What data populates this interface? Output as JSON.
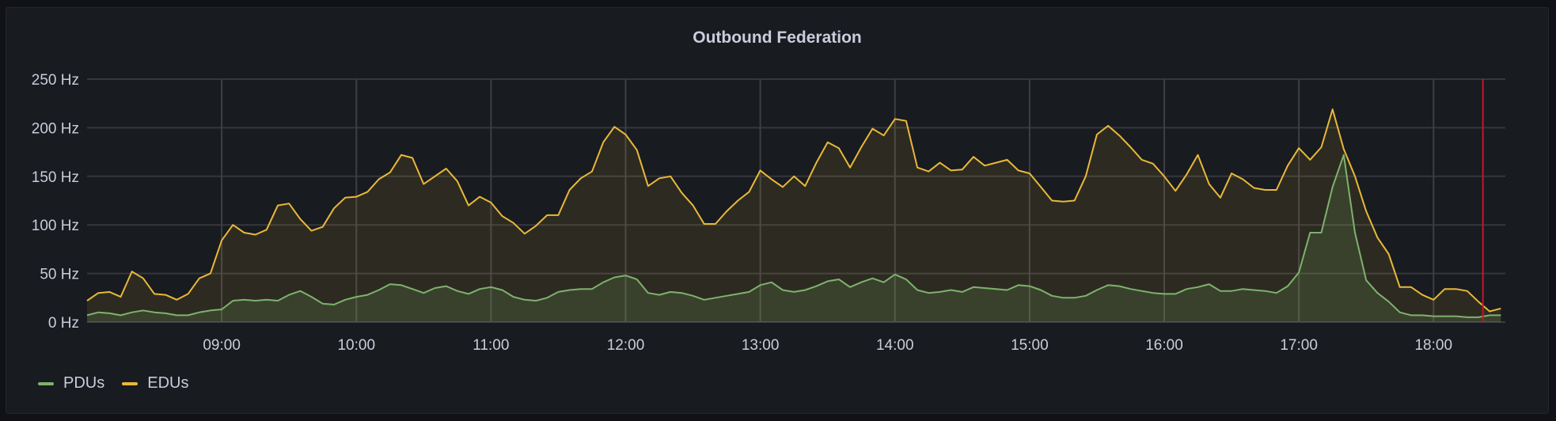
{
  "chart_data": {
    "type": "line",
    "title": "Outbound Federation",
    "xlabel": "",
    "ylabel": "",
    "unit": "Hz",
    "ylim": [
      0,
      250
    ],
    "xlim": [
      "08:00",
      "18:32"
    ],
    "yticks": [
      "0 Hz",
      "50 Hz",
      "100 Hz",
      "150 Hz",
      "200 Hz",
      "250 Hz"
    ],
    "ytick_values": [
      0,
      50,
      100,
      150,
      200,
      250
    ],
    "xticks": [
      "09:00",
      "10:00",
      "11:00",
      "12:00",
      "13:00",
      "14:00",
      "15:00",
      "16:00",
      "17:00",
      "18:00"
    ],
    "grid": true,
    "legend_placement": "bottom-left",
    "fill_area": true,
    "annotation_time": "18:22",
    "annotation_color": "#c4162a",
    "x_start": "08:00",
    "x_step_minutes": 5,
    "series": [
      {
        "name": "PDUs",
        "color": "#7eb26d",
        "values": [
          7,
          10,
          9,
          7,
          10,
          12,
          10,
          9,
          7,
          7,
          10,
          12,
          13,
          22,
          23,
          22,
          23,
          22,
          28,
          32,
          26,
          19,
          18,
          23,
          26,
          28,
          33,
          39,
          38,
          34,
          30,
          35,
          37,
          32,
          29,
          34,
          36,
          33,
          26,
          23,
          22,
          25,
          31,
          33,
          34,
          34,
          41,
          46,
          48,
          44,
          30,
          28,
          31,
          30,
          27,
          23,
          25,
          27,
          29,
          31,
          38,
          41,
          33,
          31,
          33,
          37,
          42,
          44,
          36,
          41,
          45,
          41,
          49,
          44,
          33,
          30,
          31,
          33,
          31,
          36,
          35,
          34,
          33,
          38,
          37,
          33,
          27,
          25,
          25,
          27,
          33,
          38,
          37,
          34,
          32,
          30,
          29,
          29,
          34,
          36,
          39,
          32,
          32,
          34,
          33,
          32,
          30,
          37,
          51,
          92,
          92,
          139,
          172,
          92,
          43,
          30,
          21,
          10,
          7,
          7,
          6,
          6,
          6,
          5,
          5,
          7,
          7
        ]
      },
      {
        "name": "EDUs",
        "color": "#eab839",
        "values": [
          22,
          30,
          31,
          26,
          52,
          45,
          29,
          28,
          23,
          29,
          45,
          50,
          84,
          100,
          92,
          90,
          95,
          120,
          122,
          106,
          94,
          98,
          117,
          128,
          129,
          134,
          147,
          154,
          172,
          169,
          142,
          150,
          158,
          145,
          120,
          129,
          123,
          109,
          102,
          91,
          99,
          110,
          110,
          136,
          148,
          155,
          185,
          201,
          193,
          177,
          140,
          148,
          150,
          133,
          120,
          101,
          101,
          114,
          125,
          134,
          156,
          147,
          139,
          150,
          140,
          164,
          185,
          179,
          159,
          180,
          199,
          192,
          209,
          207,
          159,
          155,
          164,
          156,
          157,
          170,
          161,
          164,
          167,
          156,
          153,
          139,
          125,
          124,
          125,
          150,
          193,
          202,
          192,
          180,
          167,
          163,
          150,
          135,
          152,
          172,
          142,
          128,
          153,
          147,
          138,
          136,
          136,
          161,
          179,
          167,
          180,
          219,
          178,
          150,
          114,
          87,
          70,
          36,
          36,
          28,
          23,
          34,
          34,
          32,
          21,
          11,
          14
        ]
      }
    ]
  }
}
